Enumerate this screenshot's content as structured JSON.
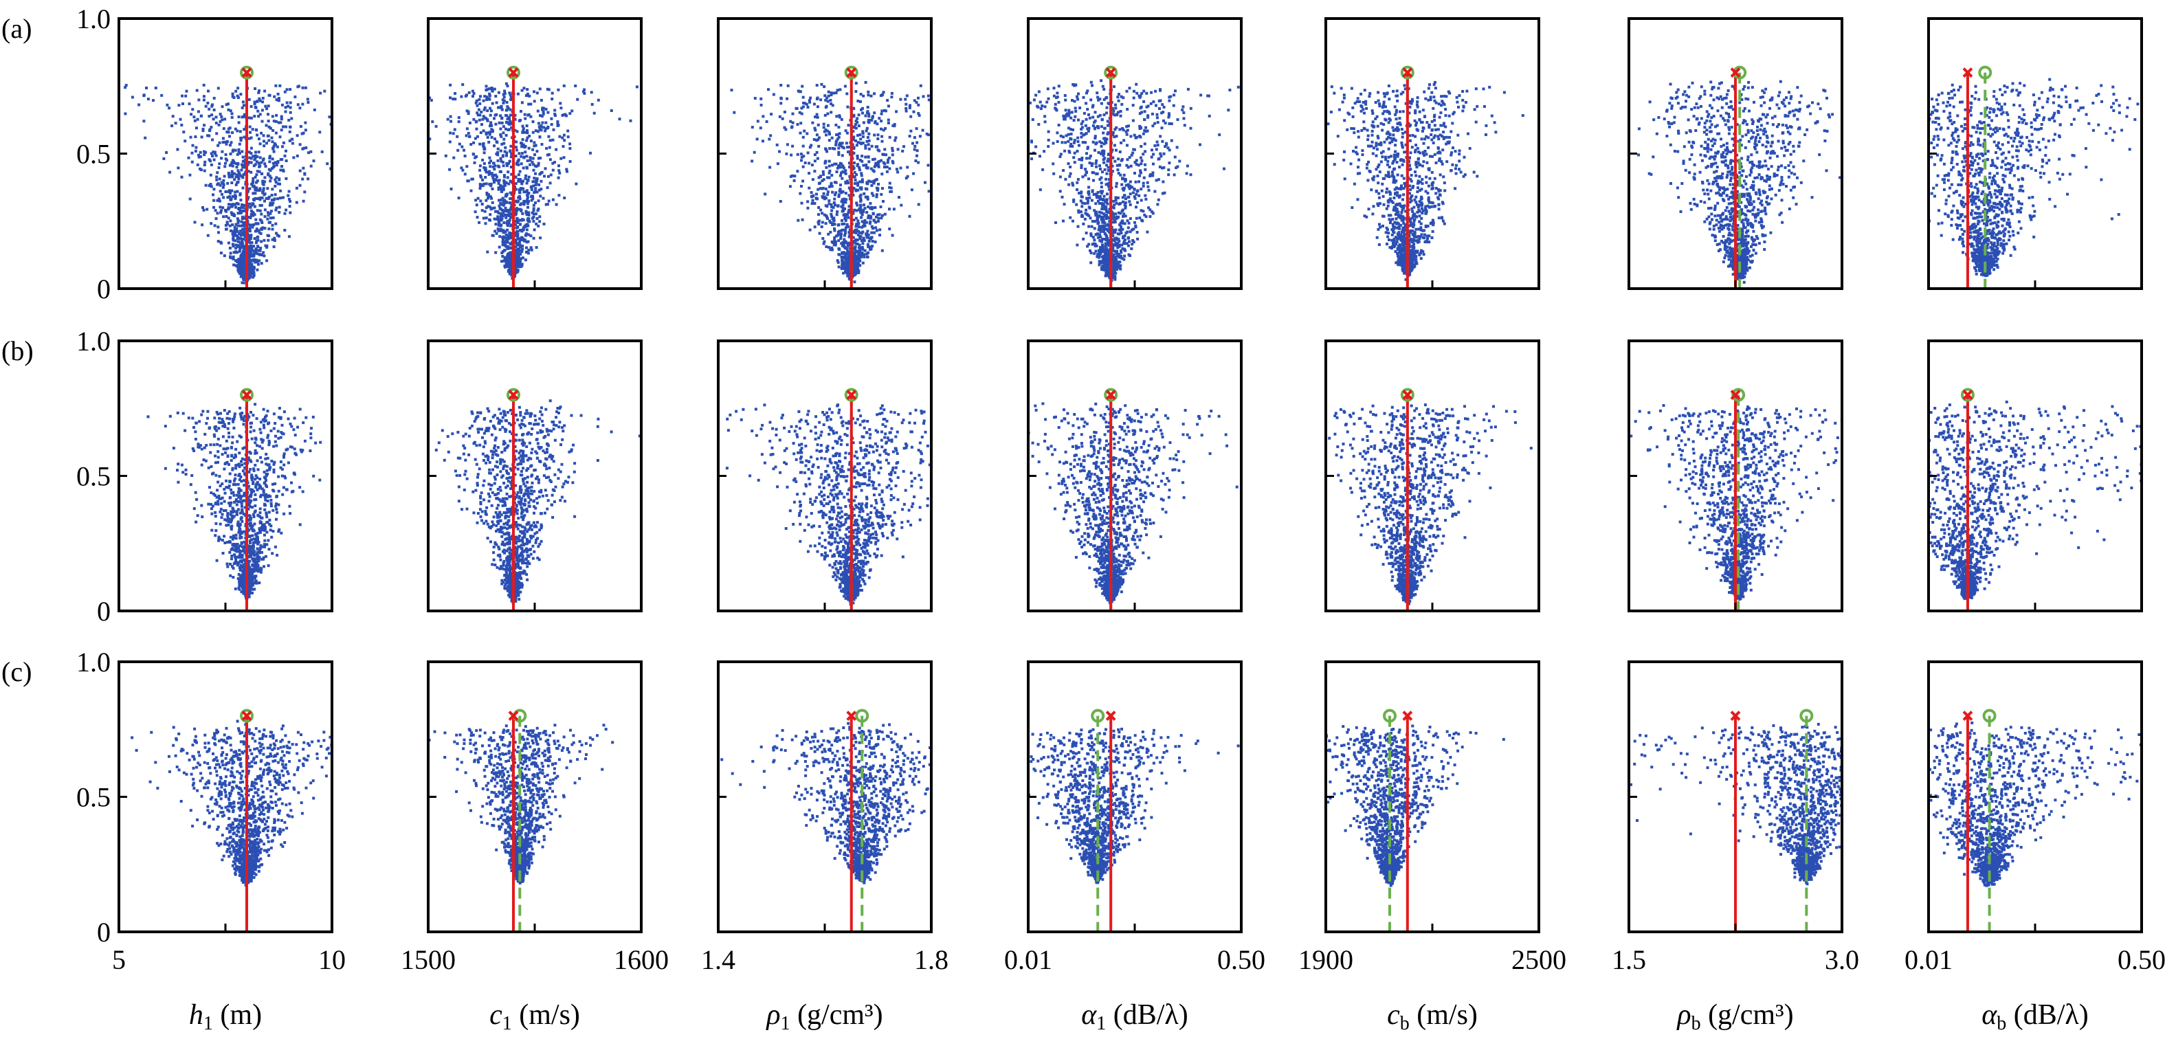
{
  "figure": {
    "row_labels": [
      "(a)",
      "(b)",
      "(c)"
    ],
    "y_tick_labels": [
      "1.0",
      "0.5",
      "0"
    ],
    "columns": [
      {
        "label_symbol": "h",
        "label_sub": "1",
        "label_unit": " (m)",
        "x_tick_left": "5",
        "x_tick_right": "10"
      },
      {
        "label_symbol": "c",
        "label_sub": "1",
        "label_unit": " (m/s)",
        "x_tick_left": "1500",
        "x_tick_right": "1600"
      },
      {
        "label_symbol": "ρ",
        "label_sub": "1",
        "label_unit": " (g/cm³)",
        "x_tick_left": "1.4",
        "x_tick_right": "1.8"
      },
      {
        "label_symbol": "α",
        "label_sub": "1",
        "label_unit": " (dB/λ)",
        "x_tick_left": "0.01",
        "x_tick_right": "0.50"
      },
      {
        "label_symbol": "c",
        "label_sub": "b",
        "label_unit": " (m/s)",
        "x_tick_left": "1900",
        "x_tick_right": "2500"
      },
      {
        "label_symbol": "ρ",
        "label_sub": "b",
        "label_unit": " (g/cm³)",
        "x_tick_left": "1.5",
        "x_tick_right": "3.0"
      },
      {
        "label_symbol": "α",
        "label_sub": "b",
        "label_unit": " (dB/λ)",
        "x_tick_left": "0.01",
        "x_tick_right": "0.50"
      }
    ]
  },
  "chart_data": {
    "type": "scatter",
    "ylim": [
      0,
      1.0
    ],
    "colors": {
      "points": "#2b4fb3",
      "true_line": "#e31a1c",
      "estimate_line": "#6ab04c"
    },
    "markers": {
      "true_value": "×",
      "estimate": "o"
    },
    "columns": [
      {
        "xlim": [
          5,
          10
        ],
        "true": 8.0,
        "estimate": [
          8.0,
          8.0,
          8.0
        ],
        "spread": [
          0.85,
          0.65,
          0.75
        ],
        "floor": [
          0.05,
          0.07,
          0.2
        ]
      },
      {
        "xlim": [
          1500,
          1600
        ],
        "true": 1540,
        "estimate": [
          1540,
          1540,
          1543
        ],
        "spread": [
          0.7,
          0.6,
          0.55
        ],
        "floor": [
          0.07,
          0.06,
          0.21
        ]
      },
      {
        "xlim": [
          1.4,
          1.8
        ],
        "true": 1.65,
        "estimate": [
          1.65,
          1.65,
          1.67
        ],
        "spread": [
          0.9,
          0.9,
          0.8
        ],
        "floor": [
          0.06,
          0.06,
          0.21
        ]
      },
      {
        "xlim": [
          0.01,
          0.5
        ],
        "true": 0.2,
        "estimate": [
          0.2,
          0.2,
          0.17
        ],
        "spread": [
          0.85,
          0.8,
          0.75
        ],
        "floor": [
          0.06,
          0.06,
          0.21
        ]
      },
      {
        "xlim": [
          1900,
          2500
        ],
        "true": 2130,
        "estimate": [
          2130,
          2130,
          2080
        ],
        "spread": [
          0.75,
          0.75,
          0.6
        ],
        "floor": [
          0.07,
          0.06,
          0.2
        ]
      },
      {
        "xlim": [
          1.5,
          3.0
        ],
        "true": 2.25,
        "estimate": [
          2.28,
          2.27,
          2.75
        ],
        "spread": [
          0.9,
          0.85,
          0.8
        ],
        "floor": [
          0.06,
          0.07,
          0.21
        ]
      },
      {
        "xlim": [
          0.01,
          0.5
        ],
        "true": 0.1,
        "estimate": [
          0.14,
          0.1,
          0.15
        ],
        "spread": [
          1.0,
          1.0,
          1.0
        ],
        "floor": [
          0.07,
          0.07,
          0.2
        ]
      }
    ],
    "plateau": 0.75,
    "points_per_panel": 1400
  }
}
